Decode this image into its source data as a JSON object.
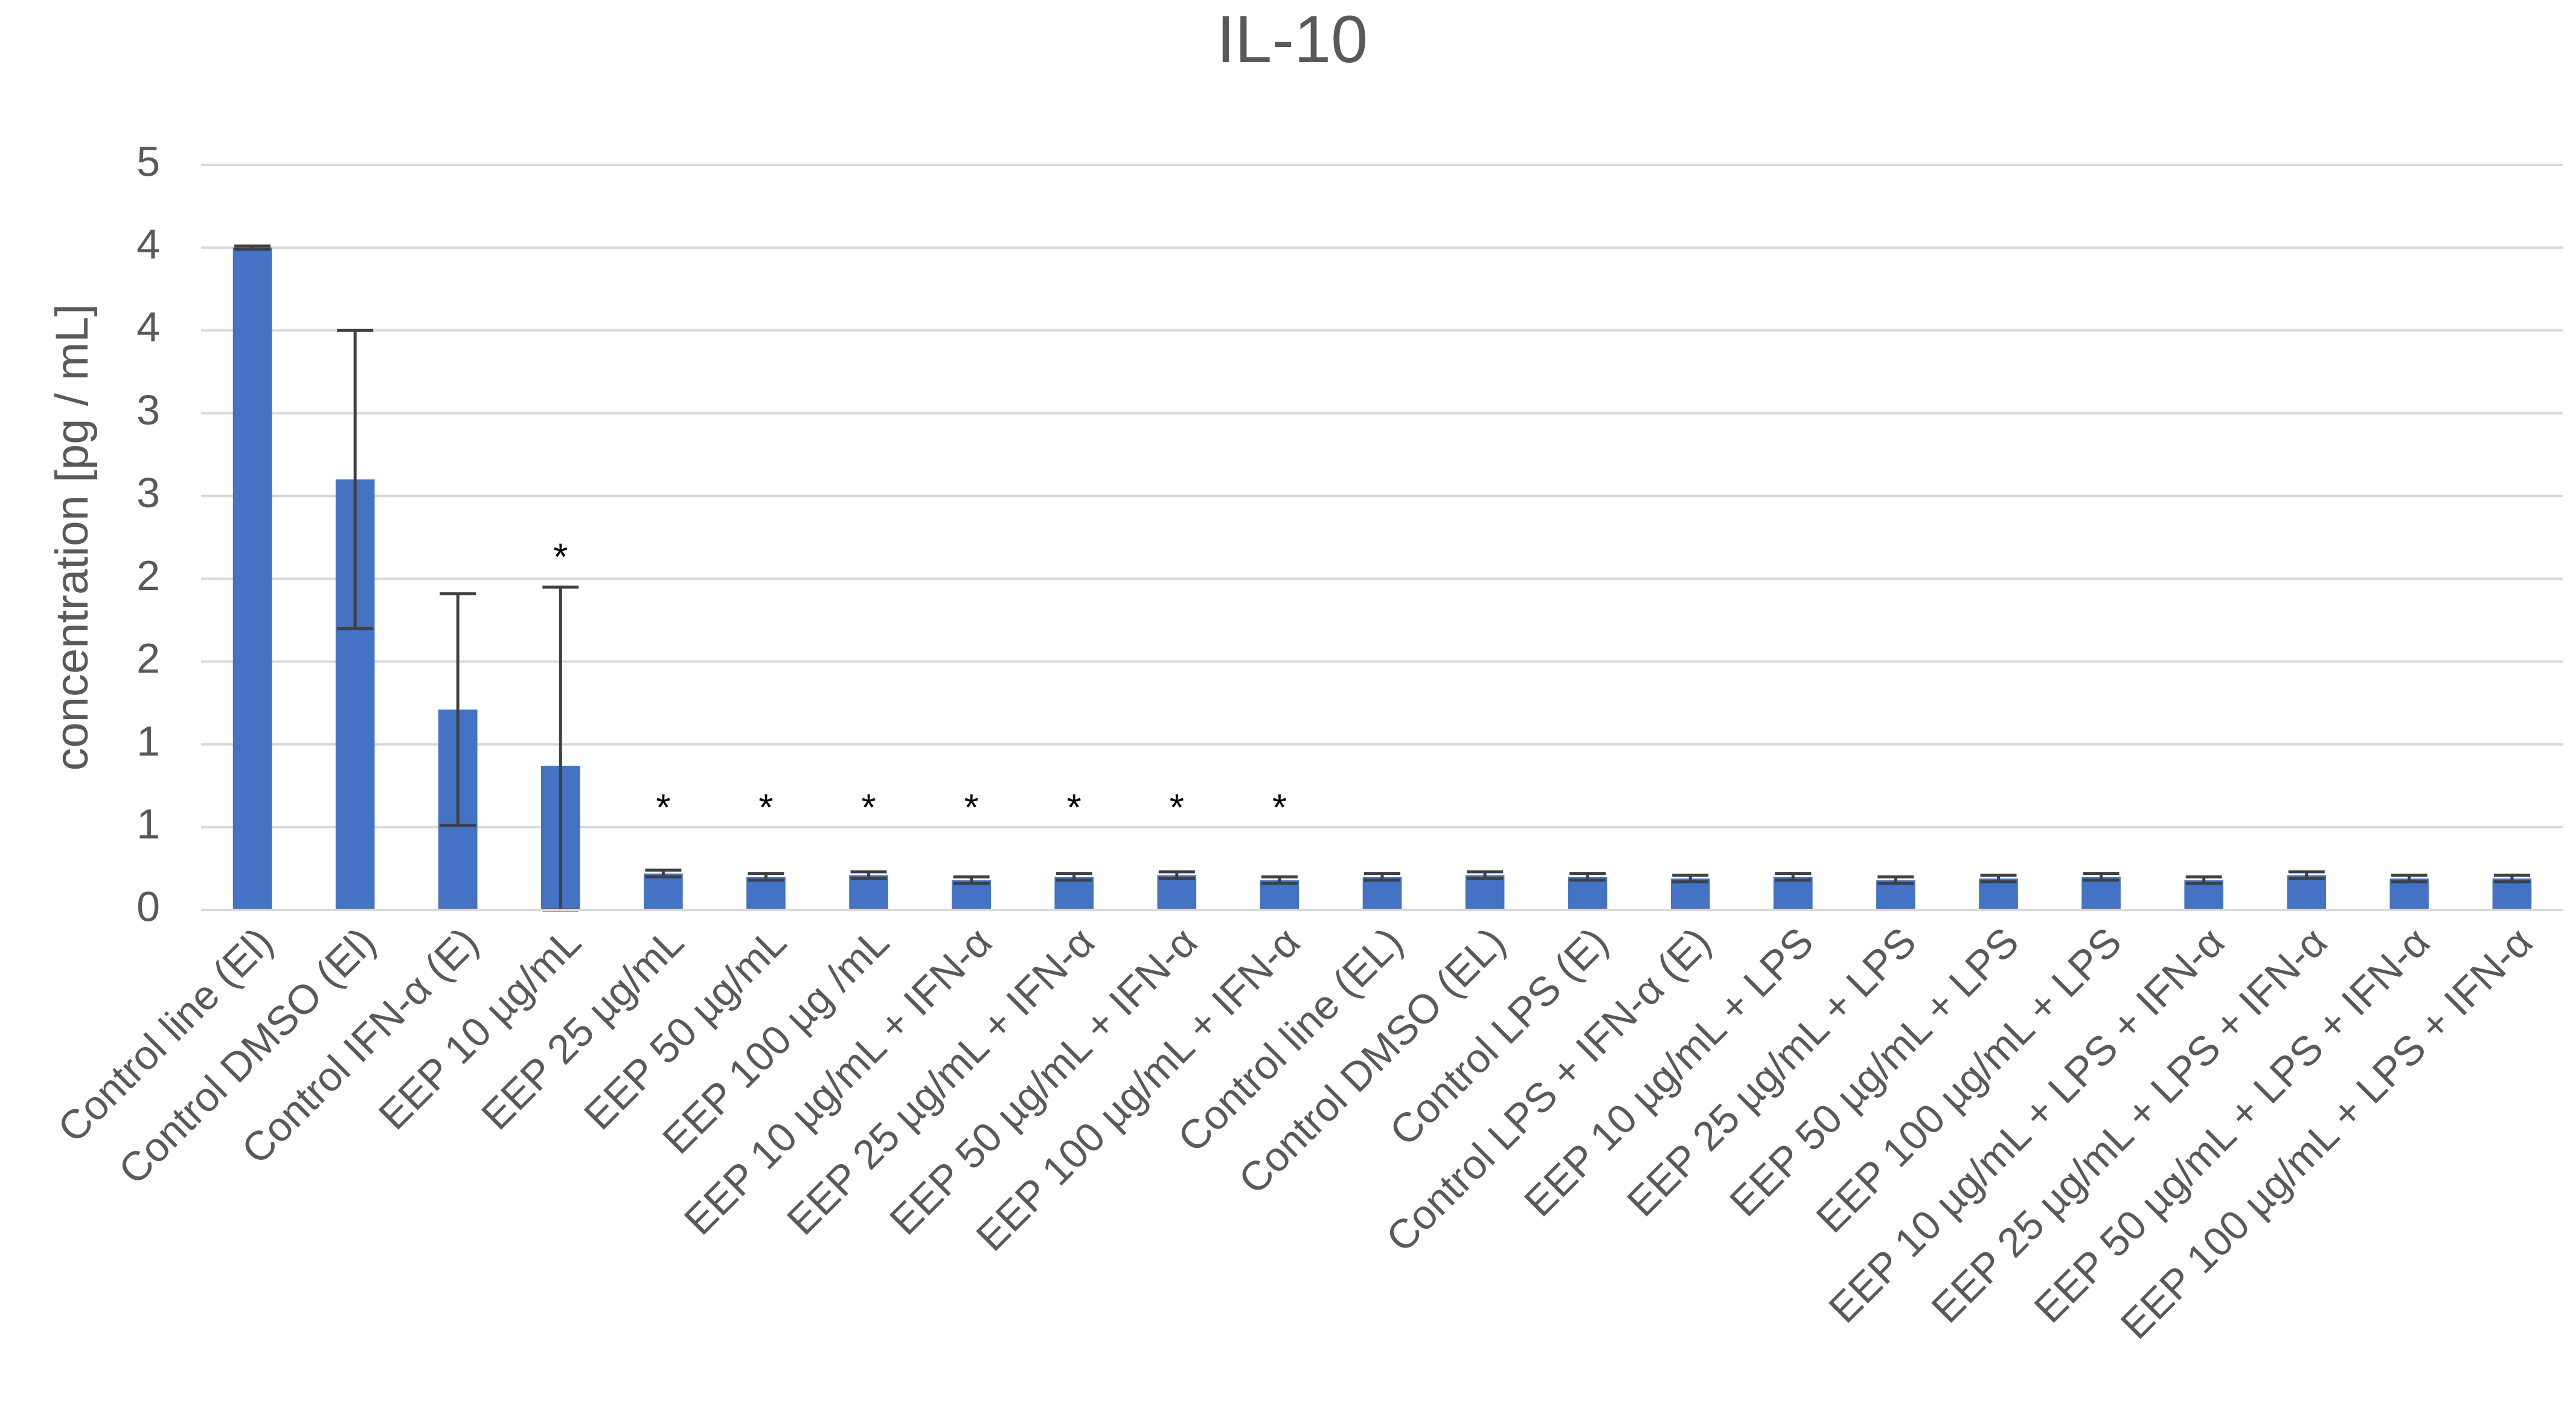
{
  "chart_data": {
    "type": "bar",
    "title": "IL-10",
    "y_label": "concentration [pg / mL]",
    "categories": [
      "Control line (El)",
      "Control DMSO (El)",
      "Control IFN-α (E)",
      "EEP 10 µg/mL",
      "EEP 25 µg/mL",
      "EEP 50 µg/mL",
      "EEP 100 µg /mL",
      "EEP 10 µg/mL + IFN-α",
      "EEP 25 µg/mL + IFN-α",
      "EEP 50 µg/mL + IFN-α",
      "EEP 100 µg/mL + IFN-α",
      "Control line (EL)",
      "Control DMSO (EL)",
      "Control LPS (E)",
      "Control LPS + IFN-α (E)",
      "EEP 10 µg/mL + LPS",
      "EEP 25 µg/mL + LPS",
      "EEP 50 µg/mL + LPS",
      "EEP 100 µg/mL + LPS",
      "EEP 10 µg/mL + LPS + IFN-α",
      "EEP 25 µg/mL + LPS + IFN-α",
      "EEP 50 µg/mL + LPS + IFN-α",
      "EEP 100 µg/mL + LPS + IFN-α"
    ],
    "values": [
      4.0,
      2.6,
      1.21,
      0.87,
      0.22,
      0.2,
      0.21,
      0.18,
      0.2,
      0.21,
      0.18,
      0.2,
      0.21,
      0.2,
      0.19,
      0.2,
      0.18,
      0.19,
      0.2,
      0.18,
      0.21,
      0.19,
      0.19
    ],
    "errors": [
      0.01,
      0.9,
      0.7,
      1.08,
      0.02,
      0.02,
      0.02,
      0.02,
      0.02,
      0.02,
      0.02,
      0.02,
      0.02,
      0.02,
      0.02,
      0.02,
      0.02,
      0.02,
      0.02,
      0.02,
      0.02,
      0.02,
      0.02
    ],
    "color": "#4472c4",
    "error_color": "#404040",
    "annotations": [
      {
        "category_index": 3,
        "text": "*"
      },
      {
        "category_index": 4,
        "text": "*"
      },
      {
        "category_index": 5,
        "text": "*"
      },
      {
        "category_index": 6,
        "text": "*"
      },
      {
        "category_index": 7,
        "text": "*"
      },
      {
        "category_index": 8,
        "text": "*"
      },
      {
        "category_index": 9,
        "text": "*"
      },
      {
        "category_index": 10,
        "text": "*"
      }
    ],
    "ylim": [
      0,
      4.5
    ],
    "yticks": [
      0,
      {
        "value": 0.5,
        "label": "1"
      },
      {
        "value": 1,
        "label": "1"
      },
      {
        "value": 1.5,
        "label": "2"
      },
      {
        "value": 2,
        "label": "2"
      },
      {
        "value": 2.5,
        "label": "3"
      },
      {
        "value": 3,
        "label": "3"
      },
      {
        "value": 3.5,
        "label": "4"
      },
      {
        "value": 4,
        "label": "4"
      },
      {
        "value": 4.5,
        "label": "5"
      }
    ],
    "grid": true
  }
}
